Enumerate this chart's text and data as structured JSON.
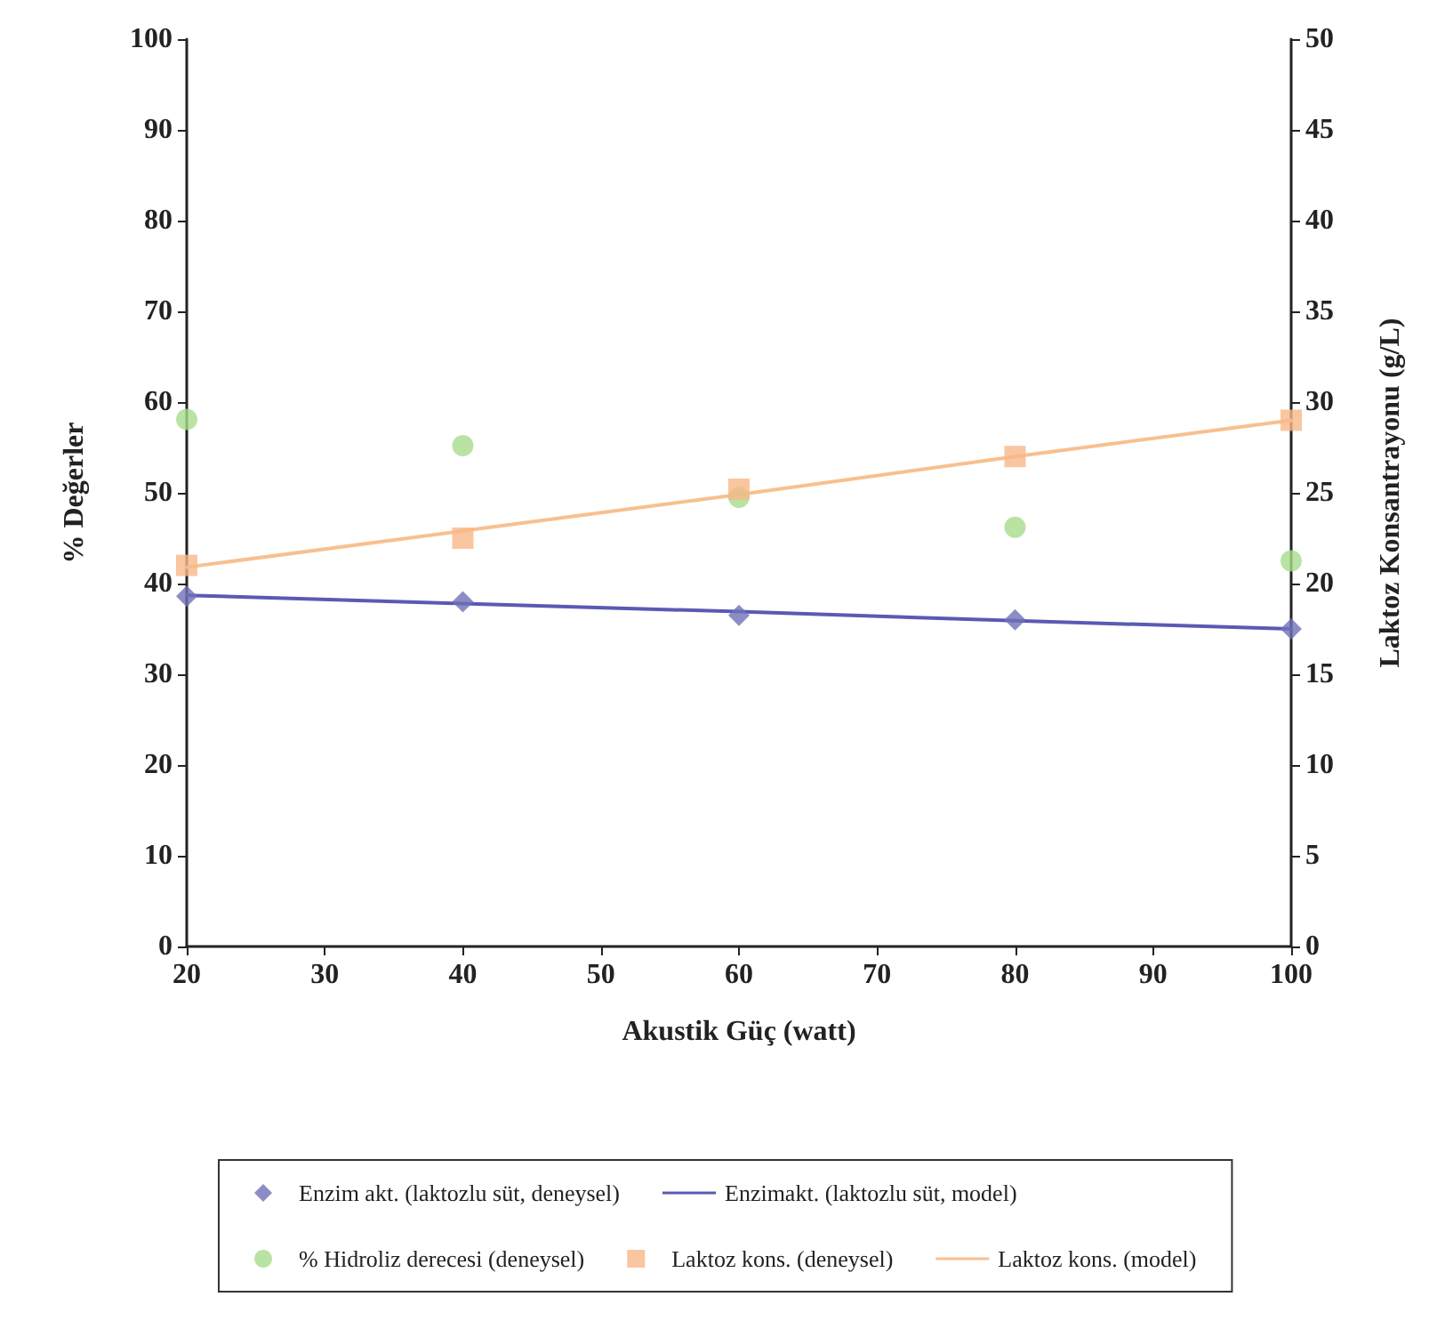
{
  "chart_data": {
    "type": "scatter",
    "xlabel": "Akustik Güç (watt)",
    "ylabel": "% Değerler",
    "y2label": "Laktoz Konsantrayonu (g/L)",
    "x": [
      20,
      40,
      60,
      80,
      100
    ],
    "series": [
      {
        "name": "Enzim akt. (laktozlu süt, deneysel)",
        "marker": "diamond",
        "color": "#7070b8",
        "values": [
          38.6,
          38.0,
          36.5,
          36.0,
          35.0
        ]
      },
      {
        "name": "Enzimakt. (laktozlu süt, model)",
        "type": "line",
        "marker": "none",
        "color": "#5a5ab4",
        "values": [
          38.7,
          37.8,
          36.9,
          35.9,
          35.0
        ]
      },
      {
        "name": "% Hidroliz derecesi (deneysel)",
        "marker": "circle",
        "color": "#a8dc8c",
        "values": [
          58.1,
          55.2,
          49.5,
          46.2,
          42.5
        ]
      },
      {
        "name": "Laktoz kons. (deneysel)",
        "marker": "square",
        "axis": "y2",
        "color": "#f8b888",
        "values": [
          21.0,
          22.5,
          25.2,
          27.0,
          29.0
        ]
      },
      {
        "name": "Laktoz kons. (model)",
        "type": "line",
        "marker": "none",
        "axis": "y2",
        "color": "#f8c090",
        "values": [
          20.9,
          22.9,
          24.9,
          27.0,
          29.0
        ]
      }
    ],
    "xlim": [
      20,
      100
    ],
    "xticks": [
      20,
      30,
      40,
      50,
      60,
      70,
      80,
      90,
      100
    ],
    "ylim": [
      0,
      100
    ],
    "yticks": [
      0,
      10,
      20,
      30,
      40,
      50,
      60,
      70,
      80,
      90,
      100
    ],
    "y2lim": [
      0,
      50
    ],
    "y2ticks": [
      0,
      5,
      10,
      15,
      20,
      25,
      30,
      35,
      40,
      45,
      50
    ],
    "grid": false,
    "legend": "bottom"
  }
}
